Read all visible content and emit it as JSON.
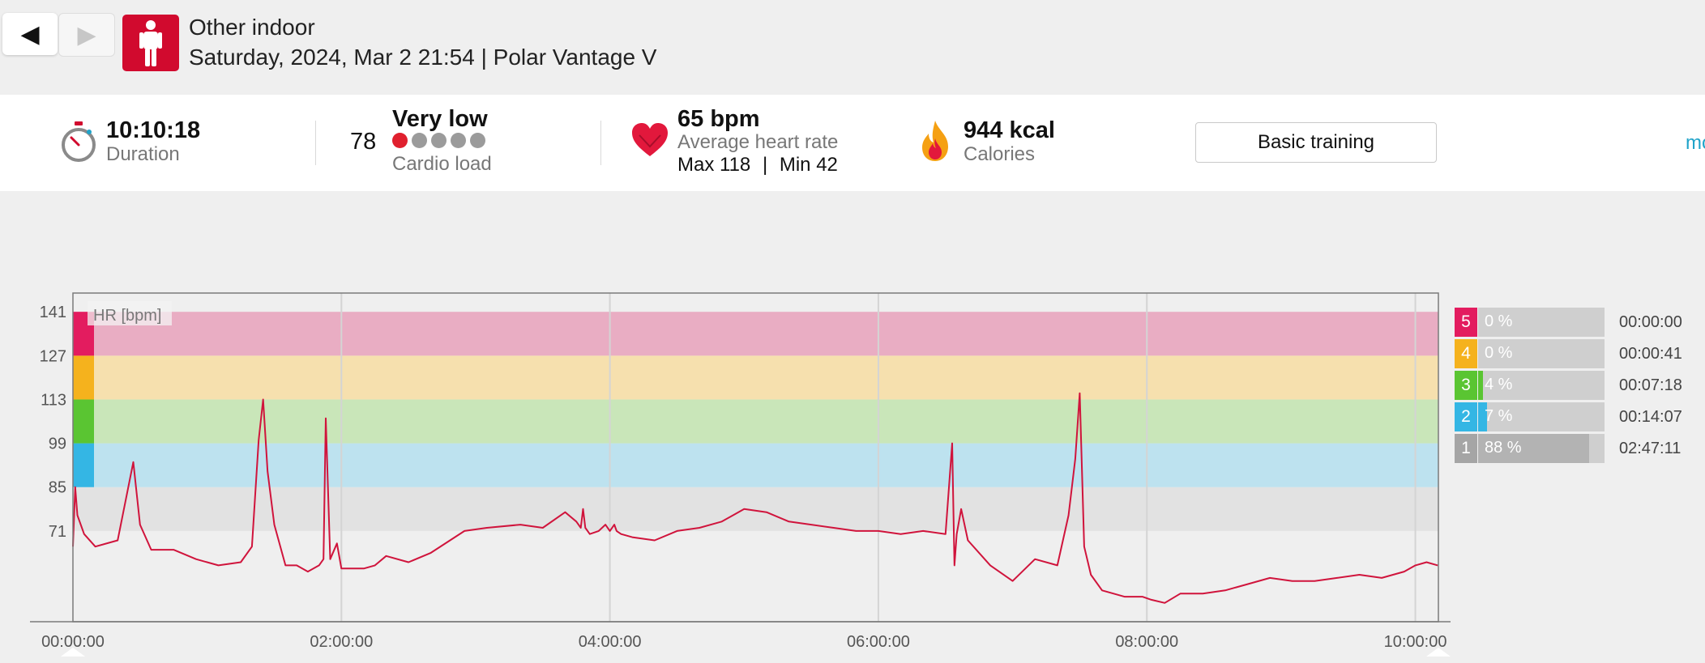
{
  "nav": {
    "prev_icon": "triangle-left-icon",
    "next_icon": "triangle-right-icon"
  },
  "header": {
    "sport_icon": "standing-person-icon",
    "sport_icon_color": "#d10a2e",
    "title": "Other indoor",
    "subtitle": "Saturday, 2024, Mar 2 21:54 | Polar Vantage V"
  },
  "summary": {
    "duration_value": "10:10:18",
    "duration_label": "Duration",
    "cardio_value": "78",
    "cardio_level": "Very low",
    "cardio_label": "Cardio load",
    "cardio_dots_filled": 1,
    "cardio_dots_total": 5,
    "hr_value": "65 bpm",
    "hr_label": "Average heart rate",
    "hr_max": "Max 118",
    "hr_sep": "|",
    "hr_min": "Min 42",
    "calories_value": "944 kcal",
    "calories_label": "Calories",
    "training_button": "Basic training",
    "more_link": "mo"
  },
  "chart_data": {
    "type": "line",
    "ylabel": "HR [bpm]",
    "y_ticks": [
      "141",
      "127",
      "113",
      "99",
      "85",
      "71"
    ],
    "x_ticks": [
      "00:00:00",
      "02:00:00",
      "04:00:00",
      "06:00:00",
      "08:00:00",
      "10:00:00"
    ],
    "xlim_minutes": [
      0,
      610.3
    ],
    "ylim": [
      42,
      147
    ],
    "zone_bounds": [
      71,
      85,
      99,
      113,
      127,
      141
    ],
    "zone_colors": [
      "#e2e2e2",
      "#bde2ef",
      "#c9e6b9",
      "#f6e0ae",
      "#e9adc3"
    ],
    "line_color": "#d0143c",
    "series": [
      {
        "x": [
          0,
          1,
          2,
          5,
          10,
          20,
          27,
          30,
          35,
          45,
          55,
          65,
          75,
          80,
          83,
          85,
          87,
          90,
          95,
          100,
          105,
          110,
          112,
          113,
          115,
          118,
          120,
          130,
          135,
          140,
          150,
          160,
          175,
          185,
          200,
          210,
          220,
          225,
          227,
          228,
          229,
          231,
          235,
          238,
          240,
          242,
          243,
          245,
          250,
          260,
          270,
          280,
          290,
          300,
          310,
          320,
          330,
          340,
          350,
          360,
          370,
          380,
          390,
          393,
          394,
          395,
          397,
          400,
          410,
          420,
          430,
          440,
          445,
          448,
          450,
          452,
          455,
          460,
          470,
          478,
          482,
          488,
          495,
          505,
          515,
          525,
          535,
          545,
          555,
          565,
          575,
          585,
          595,
          600,
          605,
          610
        ],
        "values": [
          66,
          85,
          76,
          70,
          66,
          68,
          93,
          73,
          65,
          65,
          62,
          60,
          61,
          66,
          100,
          113,
          90,
          73,
          60,
          60,
          58,
          60,
          62,
          107,
          62,
          67,
          59,
          59,
          60,
          63,
          61,
          64,
          71,
          72,
          73,
          72,
          77,
          74,
          72,
          78,
          72,
          70,
          71,
          73,
          71,
          73,
          71,
          70,
          69,
          68,
          71,
          72,
          74,
          78,
          77,
          74,
          73,
          72,
          71,
          71,
          70,
          71,
          70,
          99,
          60,
          70,
          78,
          68,
          60,
          55,
          62,
          60,
          76,
          94,
          115,
          66,
          57,
          52,
          50,
          50,
          49,
          48,
          51,
          51,
          52,
          54,
          56,
          55,
          55,
          56,
          57,
          56,
          58,
          60,
          61,
          60
        ]
      }
    ]
  },
  "zones": [
    {
      "num": "5",
      "pct_label": "0 %",
      "pct": 0,
      "time": "00:00:00",
      "color": "#e31c5f"
    },
    {
      "num": "4",
      "pct_label": "0 %",
      "pct": 0,
      "time": "00:00:41",
      "color": "#f5b21d"
    },
    {
      "num": "3",
      "pct_label": "4 %",
      "pct": 4,
      "time": "00:07:18",
      "color": "#5ac532"
    },
    {
      "num": "2",
      "pct_label": "7 %",
      "pct": 7,
      "time": "00:14:07",
      "color": "#34b6e4"
    },
    {
      "num": "1",
      "pct_label": "88 %",
      "pct": 88,
      "time": "02:47:11",
      "color": "#a5a5a5"
    }
  ]
}
